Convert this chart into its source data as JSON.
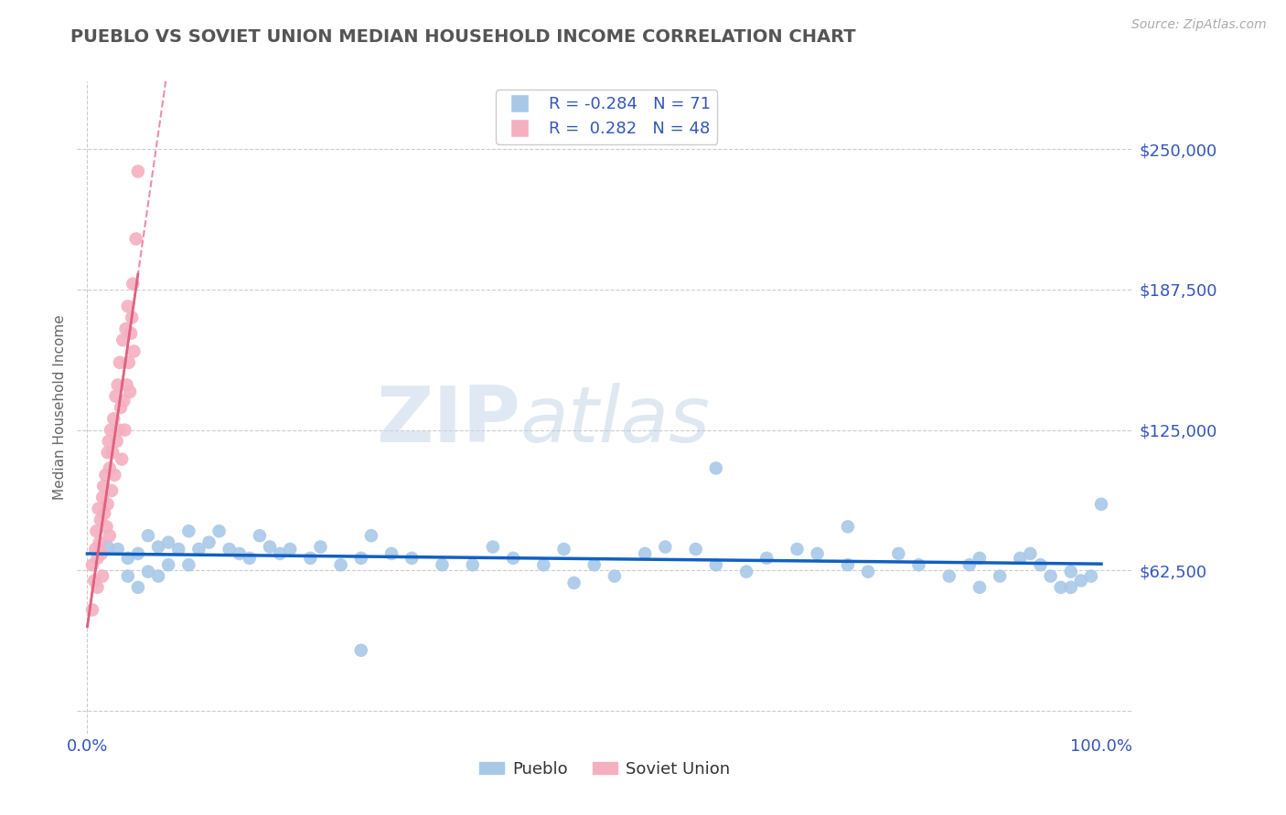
{
  "title": "PUEBLO VS SOVIET UNION MEDIAN HOUSEHOLD INCOME CORRELATION CHART",
  "source": "Source: ZipAtlas.com",
  "ylabel": "Median Household Income",
  "y_ticks": [
    0,
    62500,
    125000,
    187500,
    250000
  ],
  "y_tick_labels": [
    "",
    "$62,500",
    "$125,000",
    "$187,500",
    "$250,000"
  ],
  "xlim": [
    -0.01,
    1.03
  ],
  "ylim": [
    -10000,
    280000
  ],
  "legend_r1": "-0.284",
  "legend_n1": "71",
  "legend_r2": "0.282",
  "legend_n2": "48",
  "pueblo_color": "#a8c8e8",
  "soviet_color": "#f4b0c0",
  "pueblo_line_color": "#1060c0",
  "soviet_line_color": "#e06080",
  "title_color": "#555555",
  "axis_label_color": "#3355bb",
  "watermark_zip": "ZIP",
  "watermark_atlas": "atlas",
  "pueblo_scatter_x": [
    0.02,
    0.03,
    0.04,
    0.04,
    0.05,
    0.05,
    0.06,
    0.06,
    0.07,
    0.07,
    0.08,
    0.08,
    0.09,
    0.1,
    0.1,
    0.11,
    0.12,
    0.13,
    0.14,
    0.15,
    0.16,
    0.17,
    0.18,
    0.19,
    0.2,
    0.22,
    0.23,
    0.25,
    0.27,
    0.28,
    0.3,
    0.32,
    0.35,
    0.38,
    0.4,
    0.42,
    0.45,
    0.47,
    0.5,
    0.52,
    0.55,
    0.57,
    0.6,
    0.62,
    0.65,
    0.67,
    0.7,
    0.72,
    0.75,
    0.77,
    0.8,
    0.82,
    0.85,
    0.87,
    0.88,
    0.9,
    0.92,
    0.93,
    0.94,
    0.95,
    0.96,
    0.97,
    0.98,
    0.99,
    1.0,
    0.27,
    0.48,
    0.62,
    0.75,
    0.88,
    0.97
  ],
  "pueblo_scatter_y": [
    73000,
    72000,
    68000,
    60000,
    70000,
    55000,
    78000,
    62000,
    73000,
    60000,
    75000,
    65000,
    72000,
    80000,
    65000,
    72000,
    75000,
    80000,
    72000,
    70000,
    68000,
    78000,
    73000,
    70000,
    72000,
    68000,
    73000,
    65000,
    68000,
    78000,
    70000,
    68000,
    65000,
    65000,
    73000,
    68000,
    65000,
    72000,
    65000,
    60000,
    70000,
    73000,
    72000,
    65000,
    62000,
    68000,
    72000,
    70000,
    65000,
    62000,
    70000,
    65000,
    60000,
    65000,
    68000,
    60000,
    68000,
    70000,
    65000,
    60000,
    55000,
    62000,
    58000,
    60000,
    92000,
    27000,
    57000,
    108000,
    82000,
    55000,
    55000
  ],
  "soviet_scatter_x": [
    0.005,
    0.005,
    0.007,
    0.008,
    0.009,
    0.01,
    0.01,
    0.011,
    0.012,
    0.013,
    0.014,
    0.015,
    0.015,
    0.016,
    0.017,
    0.018,
    0.019,
    0.02,
    0.02,
    0.021,
    0.022,
    0.022,
    0.023,
    0.024,
    0.025,
    0.026,
    0.027,
    0.028,
    0.029,
    0.03,
    0.031,
    0.032,
    0.033,
    0.034,
    0.035,
    0.036,
    0.037,
    0.038,
    0.039,
    0.04,
    0.041,
    0.042,
    0.043,
    0.044,
    0.045,
    0.046,
    0.048,
    0.05
  ],
  "soviet_scatter_y": [
    65000,
    45000,
    58000,
    72000,
    80000,
    68000,
    55000,
    90000,
    75000,
    85000,
    70000,
    95000,
    60000,
    100000,
    88000,
    105000,
    82000,
    115000,
    92000,
    120000,
    108000,
    78000,
    125000,
    98000,
    115000,
    130000,
    105000,
    140000,
    120000,
    145000,
    125000,
    155000,
    135000,
    112000,
    165000,
    138000,
    125000,
    170000,
    145000,
    180000,
    155000,
    142000,
    168000,
    175000,
    190000,
    160000,
    210000,
    240000
  ]
}
